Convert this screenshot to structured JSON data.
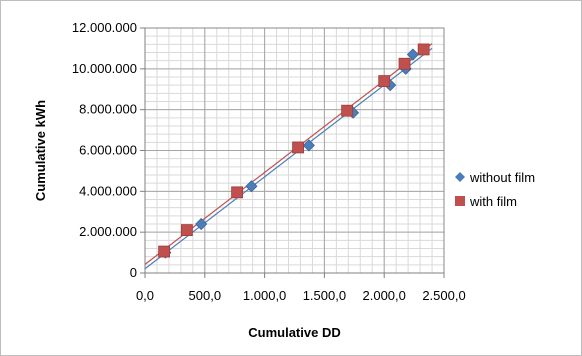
{
  "chart_data": {
    "type": "scatter",
    "xlabel": "Cumulative DD",
    "ylabel": "Cumulative kWh",
    "xlim": [
      0,
      2500
    ],
    "ylim": [
      0,
      12000000
    ],
    "grid": true,
    "legend_position": "right",
    "x_ticks": [
      "0,0",
      "500,0",
      "1.000,0",
      "1.500,0",
      "2.000,0",
      "2.500,0"
    ],
    "y_ticks": [
      "0",
      "2.000.000",
      "4.000.000",
      "6.000.000",
      "8.000.000",
      "10.000.000",
      "12.000.000"
    ],
    "series": [
      {
        "name": "without film",
        "color": "#4a7ebb",
        "marker": "diamond",
        "trendline_color": "#4a7ebb",
        "points": [
          {
            "x": 170,
            "y": 1000000
          },
          {
            "x": 470,
            "y": 2400000
          },
          {
            "x": 890,
            "y": 4250000
          },
          {
            "x": 1370,
            "y": 6250000
          },
          {
            "x": 1740,
            "y": 7850000
          },
          {
            "x": 2050,
            "y": 9200000
          },
          {
            "x": 2180,
            "y": 10000000
          },
          {
            "x": 2240,
            "y": 10700000
          }
        ]
      },
      {
        "name": "with film",
        "color": "#c0504d",
        "marker": "square",
        "trendline_color": "#c0504d",
        "points": [
          {
            "x": 160,
            "y": 1050000
          },
          {
            "x": 350,
            "y": 2100000
          },
          {
            "x": 770,
            "y": 3950000
          },
          {
            "x": 1280,
            "y": 6150000
          },
          {
            "x": 1690,
            "y": 7950000
          },
          {
            "x": 2000,
            "y": 9400000
          },
          {
            "x": 2170,
            "y": 10250000
          },
          {
            "x": 2330,
            "y": 10950000
          }
        ]
      }
    ]
  }
}
